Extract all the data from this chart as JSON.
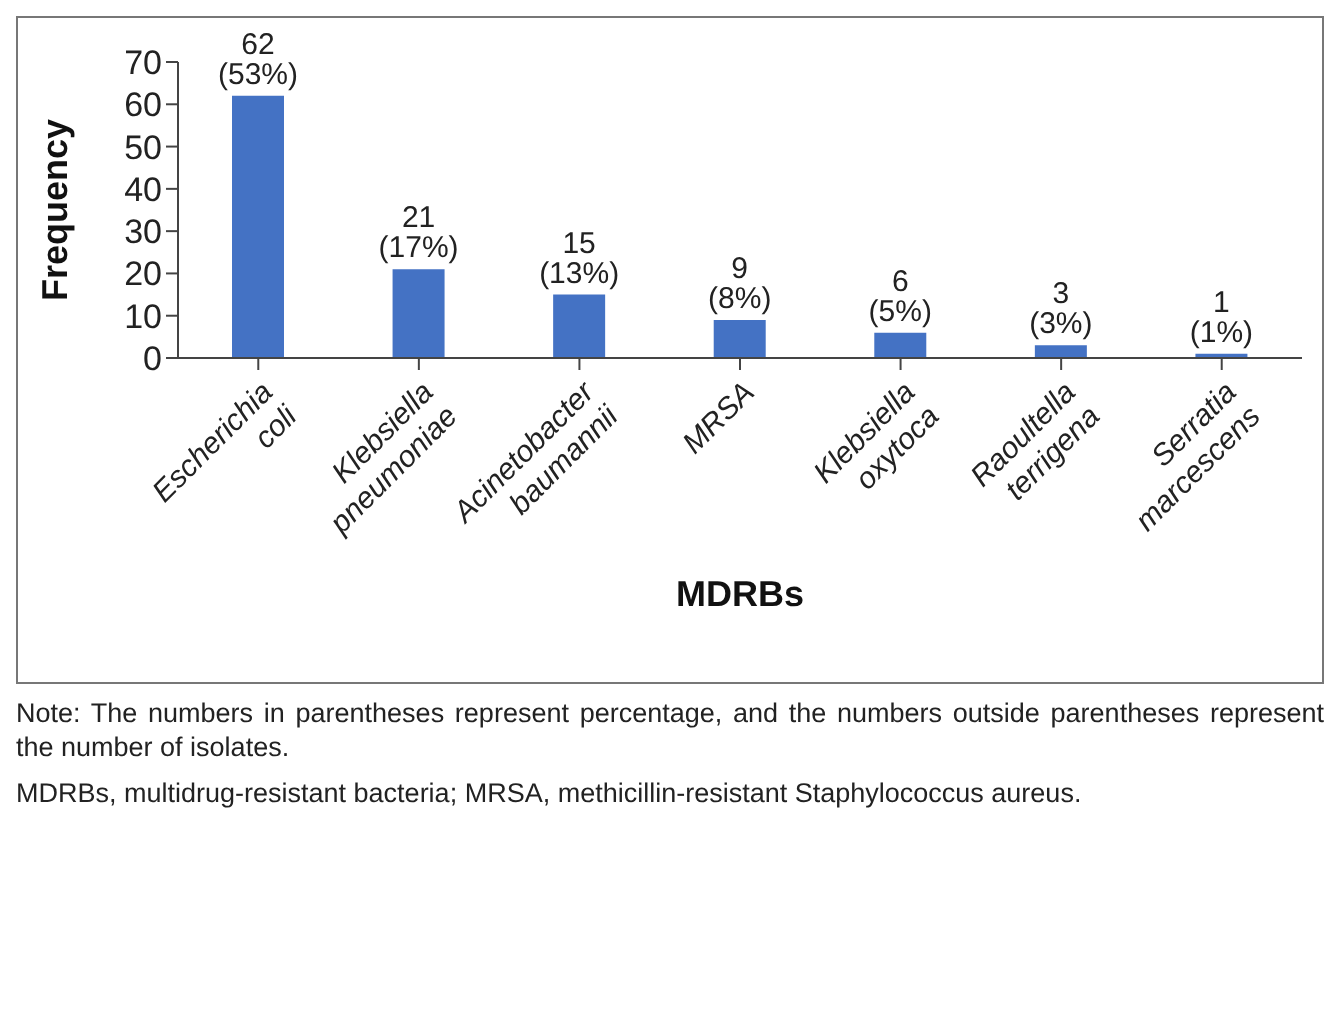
{
  "chart_data": {
    "type": "bar",
    "xlabel": "MDRBs",
    "ylabel": "Frequency",
    "categories": [
      "Escherichia coli",
      "Klebsiella pneumoniae",
      "Acinetobacter baumannii",
      "MRSA",
      "Klebsiella oxytoca",
      "Raoultella terrigena",
      "Serratia marcescens"
    ],
    "values": [
      62,
      21,
      15,
      9,
      6,
      3,
      1
    ],
    "value_labels": [
      "62 (53%)",
      "21 (17%)",
      "15 (13%)",
      "9 (8%)",
      "6 (5%)",
      "3 (3%)",
      "1 (1%)"
    ],
    "color": "#4472c4",
    "ylim": [
      0,
      70
    ],
    "yticks": [
      0,
      10,
      20,
      30,
      40,
      50,
      60,
      70
    ],
    "grid": false,
    "legend": false,
    "annotations": [
      "Note: The numbers in parentheses represent percentage, and the numbers outside parentheses represent the number of isolates.",
      "MDRBs, multidrug-resistant bacteria; MRSA, methicillin-resistant Staphylococcus aureus."
    ]
  }
}
